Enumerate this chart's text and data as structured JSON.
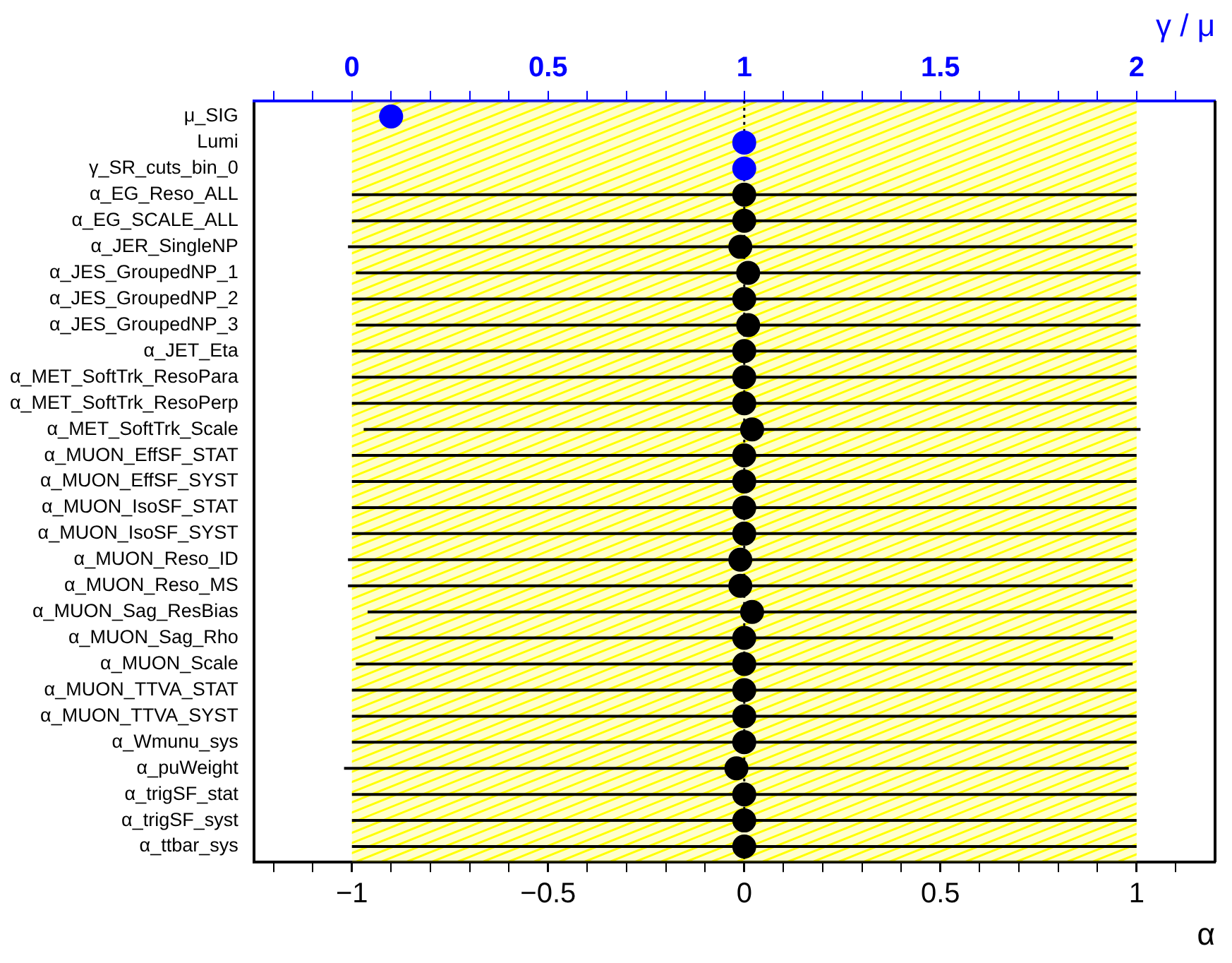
{
  "chart_data": {
    "type": "scatter",
    "orientation": "horizontal",
    "categories": [
      "μ_SIG",
      "Lumi",
      "γ_SR_cuts_bin_0",
      "α_EG_Reso_ALL",
      "α_EG_SCALE_ALL",
      "α_JER_SingleNP",
      "α_JES_GroupedNP_1",
      "α_JES_GroupedNP_2",
      "α_JES_GroupedNP_3",
      "α_JET_Eta",
      "α_MET_SoftTrk_ResoPara",
      "α_MET_SoftTrk_ResoPerp",
      "α_MET_SoftTrk_Scale",
      "α_MUON_EffSF_STAT",
      "α_MUON_EffSF_SYST",
      "α_MUON_IsoSF_STAT",
      "α_MUON_IsoSF_SYST",
      "α_MUON_Reso_ID",
      "α_MUON_Reso_MS",
      "α_MUON_Sag_ResBias",
      "α_MUON_Sag_Rho",
      "α_MUON_Scale",
      "α_MUON_TTVA_STAT",
      "α_MUON_TTVA_SYST",
      "α_Wmunu_sys",
      "α_puWeight",
      "α_trigSF_stat",
      "α_trigSF_syst",
      "α_ttbar_sys"
    ],
    "series": [
      {
        "color": "#0000ff",
        "axis": "x2",
        "values": [
          0.1,
          1.0,
          1.0,
          null,
          null,
          null,
          null,
          null,
          null,
          null,
          null,
          null,
          null,
          null,
          null,
          null,
          null,
          null,
          null,
          null,
          null,
          null,
          null,
          null,
          null,
          null,
          null,
          null,
          null
        ],
        "errors": [
          [
            0.03,
            0.03
          ],
          null,
          null,
          null,
          null,
          null,
          null,
          null,
          null,
          null,
          null,
          null,
          null,
          null,
          null,
          null,
          null,
          null,
          null,
          null,
          null,
          null,
          null,
          null,
          null,
          null,
          null,
          null,
          null
        ]
      },
      {
        "color": "#000000",
        "values": [
          null,
          null,
          null,
          0,
          0,
          -0.01,
          0.01,
          0,
          0.01,
          0,
          0,
          0,
          0.02,
          0,
          0,
          0,
          0,
          -0.01,
          -0.01,
          0.02,
          0,
          0,
          0,
          0,
          0,
          -0.02,
          0,
          0,
          0
        ],
        "errors": [
          null,
          null,
          null,
          [
            1.0,
            1.0
          ],
          [
            1.0,
            1.0
          ],
          [
            1.0,
            1.0
          ],
          [
            1.0,
            1.0
          ],
          [
            1.0,
            1.0
          ],
          [
            1.0,
            1.0
          ],
          [
            1.0,
            1.0
          ],
          [
            1.0,
            1.0
          ],
          [
            1.0,
            1.0
          ],
          [
            0.99,
            0.99
          ],
          [
            1.0,
            1.0
          ],
          [
            1.0,
            1.0
          ],
          [
            1.0,
            1.0
          ],
          [
            1.0,
            1.0
          ],
          [
            1.0,
            1.0
          ],
          [
            1.0,
            1.0
          ],
          [
            0.98,
            0.98
          ],
          [
            0.94,
            0.94
          ],
          [
            0.99,
            0.99
          ],
          [
            1.0,
            1.0
          ],
          [
            1.0,
            1.0
          ],
          [
            1.0,
            1.0
          ],
          [
            1.0,
            1.0
          ],
          [
            1.0,
            1.0
          ],
          [
            1.0,
            1.0
          ],
          [
            1.0,
            1.0
          ]
        ]
      }
    ],
    "xlabel": "α",
    "x2label": "γ / μ",
    "xlim": [
      -1.25,
      1.2
    ],
    "xticks": [
      {
        "value": -1.2,
        "label": null
      },
      {
        "value": -1.1,
        "label": null
      },
      {
        "value": -1,
        "label": "−1"
      },
      {
        "value": -0.9,
        "label": null
      },
      {
        "value": -0.8,
        "label": null
      },
      {
        "value": -0.7,
        "label": null
      },
      {
        "value": -0.6,
        "label": null
      },
      {
        "value": -0.5,
        "label": "−0.5"
      },
      {
        "value": -0.4,
        "label": null
      },
      {
        "value": -0.3,
        "label": null
      },
      {
        "value": -0.2,
        "label": null
      },
      {
        "value": -0.1,
        "label": null
      },
      0,
      {
        "value": 0.1,
        "label": null
      },
      {
        "value": 0.2,
        "label": null
      },
      {
        "value": 0.3,
        "label": null
      },
      {
        "value": 0.4,
        "label": null
      },
      0.5,
      {
        "value": 0.6,
        "label": null
      },
      {
        "value": 0.7,
        "label": null
      },
      {
        "value": 0.8,
        "label": null
      },
      {
        "value": 0.9,
        "label": null
      },
      1,
      {
        "value": 1.1,
        "label": null
      }
    ],
    "x2lim": [
      -0.25,
      2.2
    ],
    "x2ticks": [
      {
        "value": -0.2,
        "label": null
      },
      {
        "value": -0.1,
        "label": null
      },
      0,
      {
        "value": 0.1,
        "label": null
      },
      {
        "value": 0.2,
        "label": null
      },
      {
        "value": 0.3,
        "label": null
      },
      {
        "value": 0.4,
        "label": null
      },
      0.5,
      {
        "value": 0.6,
        "label": null
      },
      {
        "value": 0.7,
        "label": null
      },
      {
        "value": 0.8,
        "label": null
      },
      {
        "value": 0.9,
        "label": null
      },
      1,
      {
        "value": 1.1,
        "label": null
      },
      {
        "value": 1.2,
        "label": null
      },
      {
        "value": 1.3,
        "label": null
      },
      {
        "value": 1.4,
        "label": null
      },
      1.5,
      {
        "value": 1.6,
        "label": null
      },
      {
        "value": 1.7,
        "label": null
      },
      {
        "value": 1.8,
        "label": null
      },
      {
        "value": 1.9,
        "label": null
      },
      2,
      {
        "value": 2.1,
        "label": null
      }
    ],
    "bands": [
      {
        "axis": "x",
        "from": -1,
        "to": 1,
        "color": "#ffff00"
      }
    ],
    "ref_lines": [
      {
        "axis": "x",
        "value": 0,
        "color": "#000000",
        "line_style": "dotted"
      }
    ],
    "marker": "circle",
    "grid": false,
    "legend": false
  }
}
